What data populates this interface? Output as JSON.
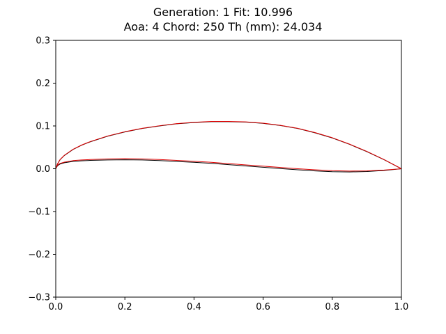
{
  "chart_data": {
    "type": "line",
    "title_lines": [
      "Generation: 1   Fit: 10.996",
      "Aoa: 4   Chord: 250   Th (mm): 24.034"
    ],
    "xlabel": "",
    "ylabel": "",
    "xlim": [
      0.0,
      1.0
    ],
    "ylim": [
      -0.3,
      0.3
    ],
    "x_ticks": [
      0.0,
      0.2,
      0.4,
      0.6,
      0.8,
      1.0
    ],
    "x_tick_labels": [
      "0.0",
      "0.2",
      "0.4",
      "0.6",
      "0.8",
      "1.0"
    ],
    "y_ticks": [
      -0.3,
      -0.2,
      -0.1,
      0.0,
      0.1,
      0.2,
      0.3
    ],
    "y_tick_labels": [
      "−0.3",
      "−0.2",
      "−0.1",
      "0.0",
      "0.1",
      "0.2",
      "0.3"
    ],
    "grid": false,
    "legend": "none",
    "series": [
      {
        "color": "#000000",
        "x": [
          1.0,
          0.95,
          0.9,
          0.85,
          0.8,
          0.75,
          0.7,
          0.65,
          0.6,
          0.55,
          0.5,
          0.45,
          0.4,
          0.35,
          0.3,
          0.25,
          0.2,
          0.15,
          0.1,
          0.075,
          0.05,
          0.025,
          0.0125,
          0.005,
          0.0,
          0.005,
          0.0125,
          0.025,
          0.05,
          0.075,
          0.1,
          0.15,
          0.2,
          0.25,
          0.3,
          0.35,
          0.4,
          0.45,
          0.5,
          0.55,
          0.6,
          0.65,
          0.7,
          0.75,
          0.8,
          0.85,
          0.9,
          0.95,
          1.0
        ],
        "y": [
          0.0,
          0.021,
          0.04,
          0.057,
          0.072,
          0.084,
          0.094,
          0.101,
          0.106,
          0.109,
          0.11,
          0.11,
          0.108,
          0.105,
          0.1,
          0.094,
          0.086,
          0.076,
          0.063,
          0.055,
          0.045,
          0.031,
          0.021,
          0.011,
          0.0,
          0.007,
          0.011,
          0.014,
          0.017,
          0.0185,
          0.0195,
          0.0205,
          0.021,
          0.0205,
          0.019,
          0.017,
          0.015,
          0.0125,
          0.0095,
          0.0065,
          0.0035,
          0.0005,
          -0.0025,
          -0.005,
          -0.007,
          -0.0075,
          -0.0065,
          -0.004,
          0.0
        ]
      },
      {
        "color": "#e00000",
        "x": [
          1.0,
          0.95,
          0.9,
          0.85,
          0.8,
          0.75,
          0.7,
          0.65,
          0.6,
          0.55,
          0.5,
          0.45,
          0.4,
          0.35,
          0.3,
          0.25,
          0.2,
          0.15,
          0.1,
          0.075,
          0.05,
          0.025,
          0.0125,
          0.005,
          0.0,
          0.005,
          0.0125,
          0.025,
          0.05,
          0.075,
          0.1,
          0.15,
          0.2,
          0.25,
          0.3,
          0.35,
          0.4,
          0.45,
          0.5,
          0.55,
          0.6,
          0.65,
          0.7,
          0.75,
          0.8,
          0.85,
          0.9,
          0.95,
          1.0
        ],
        "y": [
          0.0,
          0.0215,
          0.0405,
          0.0575,
          0.0725,
          0.0845,
          0.0945,
          0.1015,
          0.1065,
          0.1095,
          0.1105,
          0.1105,
          0.1085,
          0.1055,
          0.1005,
          0.0945,
          0.0865,
          0.0765,
          0.0635,
          0.0555,
          0.0455,
          0.0315,
          0.0215,
          0.0115,
          0.0,
          0.0085,
          0.0125,
          0.0155,
          0.019,
          0.0205,
          0.0215,
          0.023,
          0.0235,
          0.023,
          0.0215,
          0.0195,
          0.0175,
          0.015,
          0.012,
          0.009,
          0.006,
          0.003,
          0.0,
          -0.0025,
          -0.0045,
          -0.0055,
          -0.005,
          -0.003,
          0.0
        ]
      }
    ]
  }
}
